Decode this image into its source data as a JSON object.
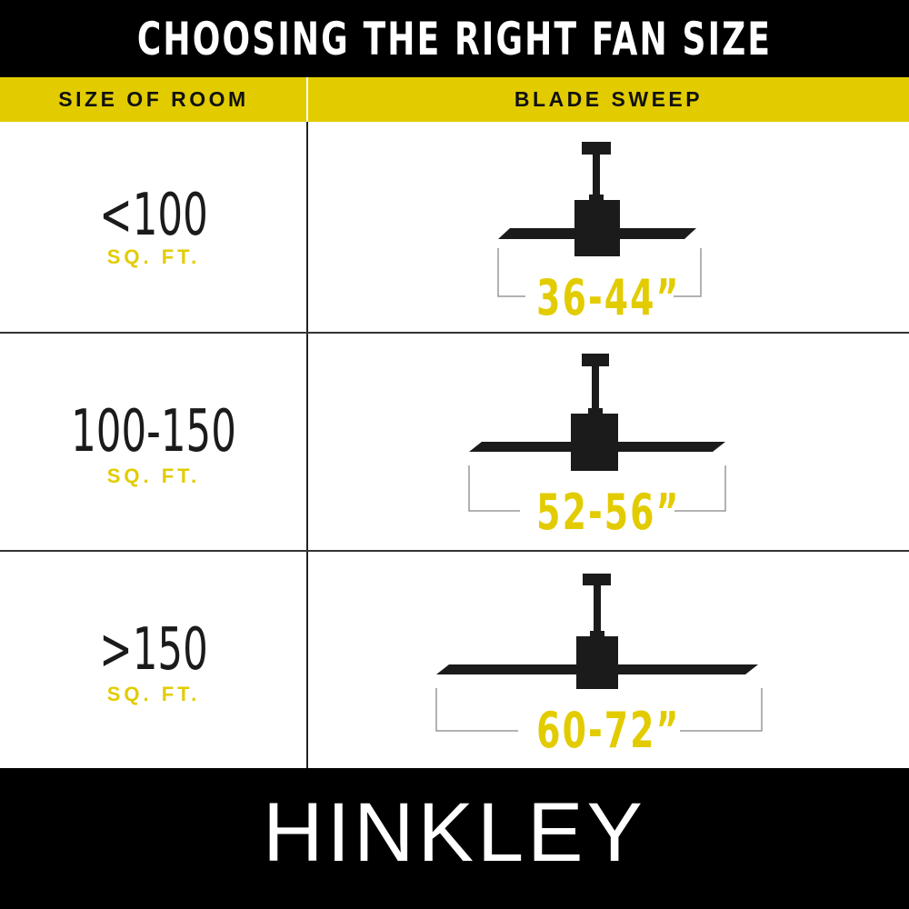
{
  "title": "CHOOSING THE RIGHT FAN SIZE",
  "headers": {
    "room": "SIZE OF ROOM",
    "sweep": "BLADE SWEEP"
  },
  "rows": [
    {
      "room": "<100",
      "unit": "SQ. FT.",
      "sweep": "36-44”"
    },
    {
      "room": "100-150",
      "unit": "SQ. FT.",
      "sweep": "52-56”"
    },
    {
      "room": ">150",
      "unit": "SQ. FT.",
      "sweep": "60-72”"
    }
  ],
  "brand": "HINKLEY",
  "colors": {
    "accent": "#e2cc00",
    "dark": "#1b1b1b",
    "background": "#ffffff"
  },
  "icons": [
    "ceiling-fan-icon"
  ]
}
